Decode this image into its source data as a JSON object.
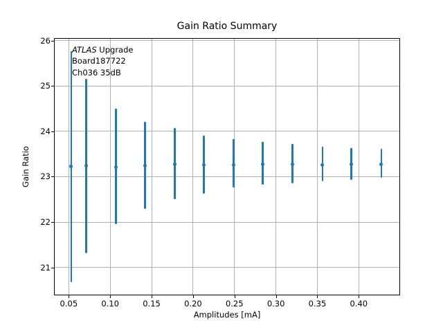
{
  "figure": {
    "title": "Gain Ratio Summary",
    "xlabel": "Amplitudes [mA]",
    "ylabel": "Gain Ratio",
    "annotation": {
      "line1_italic": "ATLAS",
      "line1_rest": " Upgrade",
      "line2": "Board187722",
      "line3": "Ch036 35dB"
    }
  },
  "chart_data": {
    "type": "scatter",
    "title": "Gain Ratio Summary",
    "xlabel": "Amplitudes [mA]",
    "ylabel": "Gain Ratio",
    "grid": true,
    "legend": "none",
    "xlim": [
      0.033,
      0.449
    ],
    "ylim": [
      20.4,
      26.04
    ],
    "x_ticks": [
      0.05,
      0.1,
      0.15,
      0.2,
      0.25,
      0.3,
      0.35,
      0.4
    ],
    "x_tick_labels": [
      "0.05",
      "0.10",
      "0.15",
      "0.20",
      "0.25",
      "0.30",
      "0.35",
      "0.40"
    ],
    "y_ticks": [
      21,
      22,
      23,
      24,
      25,
      26
    ],
    "y_tick_labels": [
      "21",
      "22",
      "23",
      "24",
      "25",
      "26"
    ],
    "series": [
      {
        "name": "gain-ratio-errorbar",
        "marker": "point",
        "error_caps": false,
        "points": [
          {
            "x": 0.053,
            "y": 23.23,
            "y_hi": 25.77,
            "y_lo": 20.67
          },
          {
            "x": 0.071,
            "y": 23.24,
            "y_hi": 25.16,
            "y_lo": 21.31
          },
          {
            "x": 0.107,
            "y": 23.22,
            "y_hi": 24.5,
            "y_lo": 21.95
          },
          {
            "x": 0.142,
            "y": 23.25,
            "y_hi": 24.21,
            "y_lo": 22.29
          },
          {
            "x": 0.178,
            "y": 23.28,
            "y_hi": 24.08,
            "y_lo": 22.51
          },
          {
            "x": 0.213,
            "y": 23.26,
            "y_hi": 23.9,
            "y_lo": 22.62
          },
          {
            "x": 0.249,
            "y": 23.26,
            "y_hi": 23.83,
            "y_lo": 22.76
          },
          {
            "x": 0.284,
            "y": 23.27,
            "y_hi": 23.77,
            "y_lo": 22.82
          },
          {
            "x": 0.32,
            "y": 23.27,
            "y_hi": 23.72,
            "y_lo": 22.86
          },
          {
            "x": 0.356,
            "y": 23.26,
            "y_hi": 23.66,
            "y_lo": 22.9
          },
          {
            "x": 0.391,
            "y": 23.27,
            "y_hi": 23.63,
            "y_lo": 22.93
          },
          {
            "x": 0.427,
            "y": 23.28,
            "y_hi": 23.61,
            "y_lo": 22.98
          }
        ]
      }
    ],
    "colors": {
      "accent": "#1f77b4",
      "grid": "#b0b0b0",
      "frame": "#000000",
      "text": "#000000",
      "background": "#ffffff"
    }
  }
}
